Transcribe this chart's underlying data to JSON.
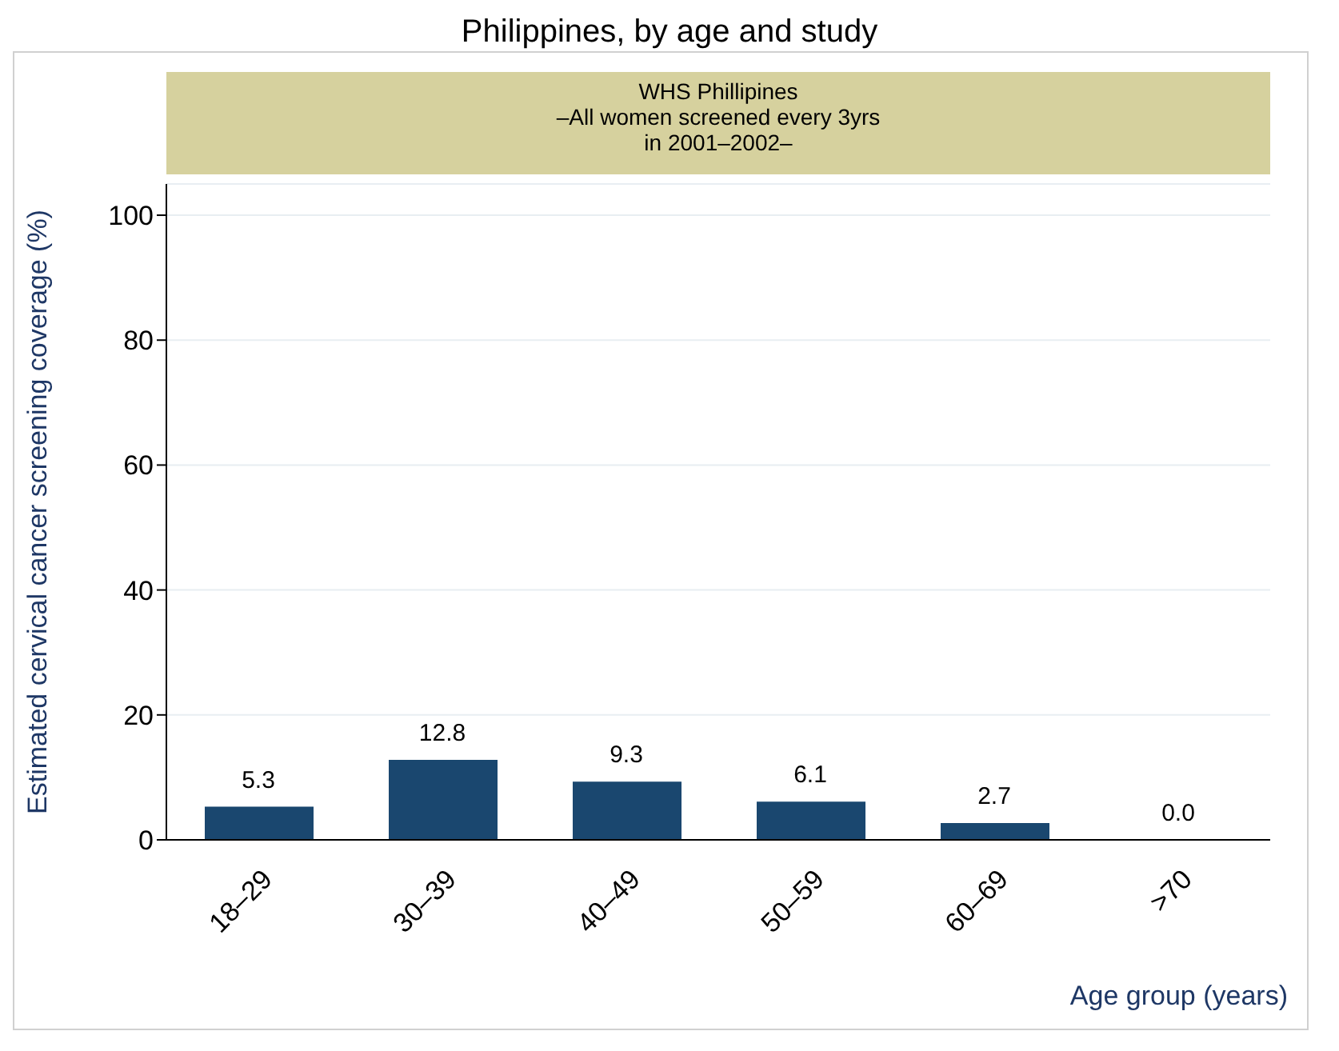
{
  "chart_data": {
    "type": "bar",
    "title": "Philippines, by age and study",
    "subtitle": "WHS Phillipines\n–All women screened every 3yrs\nin 2001–2002–",
    "xlabel": "Age group (years)",
    "ylabel": "Estimated cervical cancer screening coverage (%)",
    "categories": [
      "18–29",
      "30–39",
      "40–49",
      "50–59",
      "60–69",
      ">70"
    ],
    "values": [
      5.3,
      12.8,
      9.3,
      6.1,
      2.7,
      0.0
    ],
    "value_labels": [
      "5.3",
      "12.8",
      "9.3",
      "6.1",
      "2.7",
      "0.0"
    ],
    "color": "#1a476f",
    "ylim": [
      0,
      105
    ],
    "yticks": [
      0,
      20,
      40,
      60,
      80,
      100
    ],
    "grid": "y",
    "legend": false
  }
}
